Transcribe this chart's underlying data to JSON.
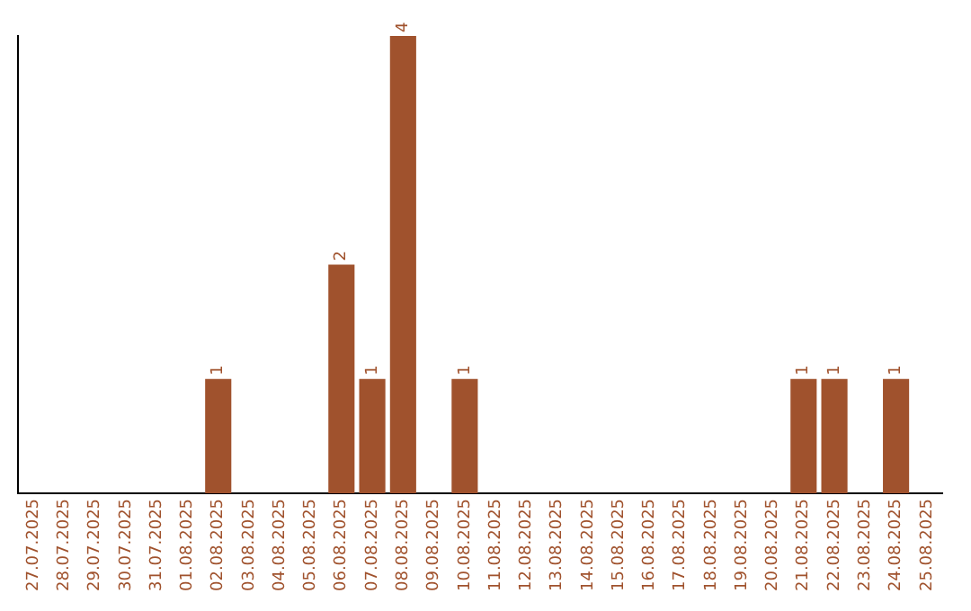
{
  "chart_data": {
    "type": "bar",
    "categories": [
      "27.07.2025",
      "28.07.2025",
      "29.07.2025",
      "30.07.2025",
      "31.07.2025",
      "01.08.2025",
      "02.08.2025",
      "03.08.2025",
      "04.08.2025",
      "05.08.2025",
      "06.08.2025",
      "07.08.2025",
      "08.08.2025",
      "09.08.2025",
      "10.08.2025",
      "11.08.2025",
      "12.08.2025",
      "13.08.2025",
      "14.08.2025",
      "15.08.2025",
      "16.08.2025",
      "17.08.2025",
      "18.08.2025",
      "19.08.2025",
      "20.08.2025",
      "21.08.2025",
      "22.08.2025",
      "23.08.2025",
      "24.08.2025",
      "25.08.2025"
    ],
    "values": [
      null,
      null,
      null,
      null,
      null,
      null,
      1,
      null,
      null,
      null,
      2,
      1,
      4,
      null,
      1,
      null,
      null,
      null,
      null,
      null,
      null,
      null,
      null,
      null,
      null,
      1,
      1,
      null,
      1,
      null
    ],
    "color": "#a0522d",
    "data_labels": true,
    "grid": false,
    "legend": false
  }
}
